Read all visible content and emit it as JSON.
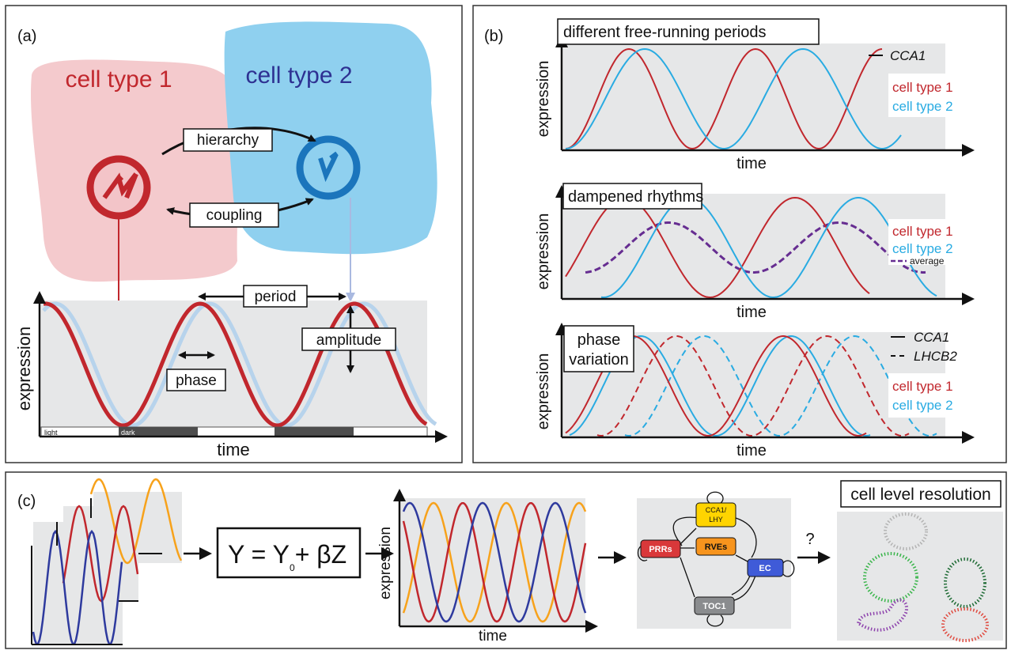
{
  "panel_a": {
    "label": "(a)",
    "cell_type_1": "cell type 1",
    "cell_type_2": "cell type 2",
    "hierarchy": "hierarchy",
    "coupling": "coupling",
    "period": "period",
    "amplitude": "amplitude",
    "phase": "phase",
    "y_axis": "expression",
    "x_axis": "time",
    "light": "light",
    "dark": "dark"
  },
  "panel_b": {
    "label": "(b)",
    "plots": [
      {
        "title": "different free-running periods",
        "legend": [
          "CCA1",
          "cell type 1",
          "cell type 2"
        ],
        "y_axis": "expression",
        "x_axis": "time"
      },
      {
        "title": "dampened rhythms",
        "legend": [
          "cell type 1",
          "cell type 2",
          "average"
        ],
        "y_axis": "expression",
        "x_axis": "time"
      },
      {
        "title": [
          "phase",
          "variation"
        ],
        "legend": [
          "CCA1",
          "LHCB2",
          "cell type 1",
          "cell type 2"
        ],
        "y_axis": "expression",
        "x_axis": "time"
      }
    ]
  },
  "panel_c": {
    "label": "(c)",
    "equation": [
      "Y = Y",
      "0",
      "+ βZ"
    ],
    "y_axis": "expression",
    "x_axis": "time",
    "network": {
      "nodes": [
        [
          "CCA1/",
          "LHY"
        ],
        "PRRs",
        "RVEs",
        "EC",
        "TOC1"
      ]
    },
    "question": "?",
    "result_title": "cell level resolution"
  }
}
